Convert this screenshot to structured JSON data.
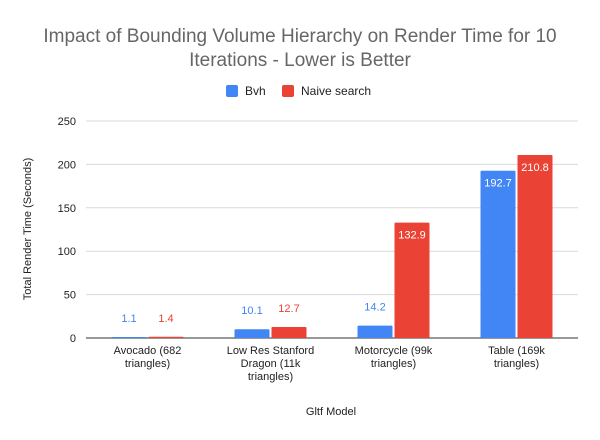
{
  "chart_data": {
    "type": "bar",
    "title_lines": [
      "Impact of Bounding Volume Hierarchy on Render Time for 10",
      "Iterations - Lower is Better"
    ],
    "xlabel": "Gltf Model",
    "ylabel": "Total Render Time (Seconds)",
    "ylim": [
      0,
      250
    ],
    "yticks": [
      0,
      50,
      100,
      150,
      200,
      250
    ],
    "grid": true,
    "legend_position": "top",
    "categories": [
      [
        "Avocado (682",
        "triangles)"
      ],
      [
        "Low Res Stanford",
        "Dragon (11k",
        "triangles)"
      ],
      [
        "Motorcycle (99k",
        "triangles)"
      ],
      [
        "Table (169k",
        "triangles)"
      ]
    ],
    "series": [
      {
        "name": "Bvh",
        "color": "#4285f4",
        "values": [
          1.1,
          10.1,
          14.2,
          192.7
        ],
        "labels": [
          "1.1",
          "10.1",
          "14.2",
          "192.7"
        ]
      },
      {
        "name": "Naive search",
        "color": "#ea4335",
        "values": [
          1.4,
          12.7,
          132.9,
          210.8
        ],
        "labels": [
          "1.4",
          "12.7",
          "132.9",
          "210.8"
        ]
      }
    ]
  }
}
